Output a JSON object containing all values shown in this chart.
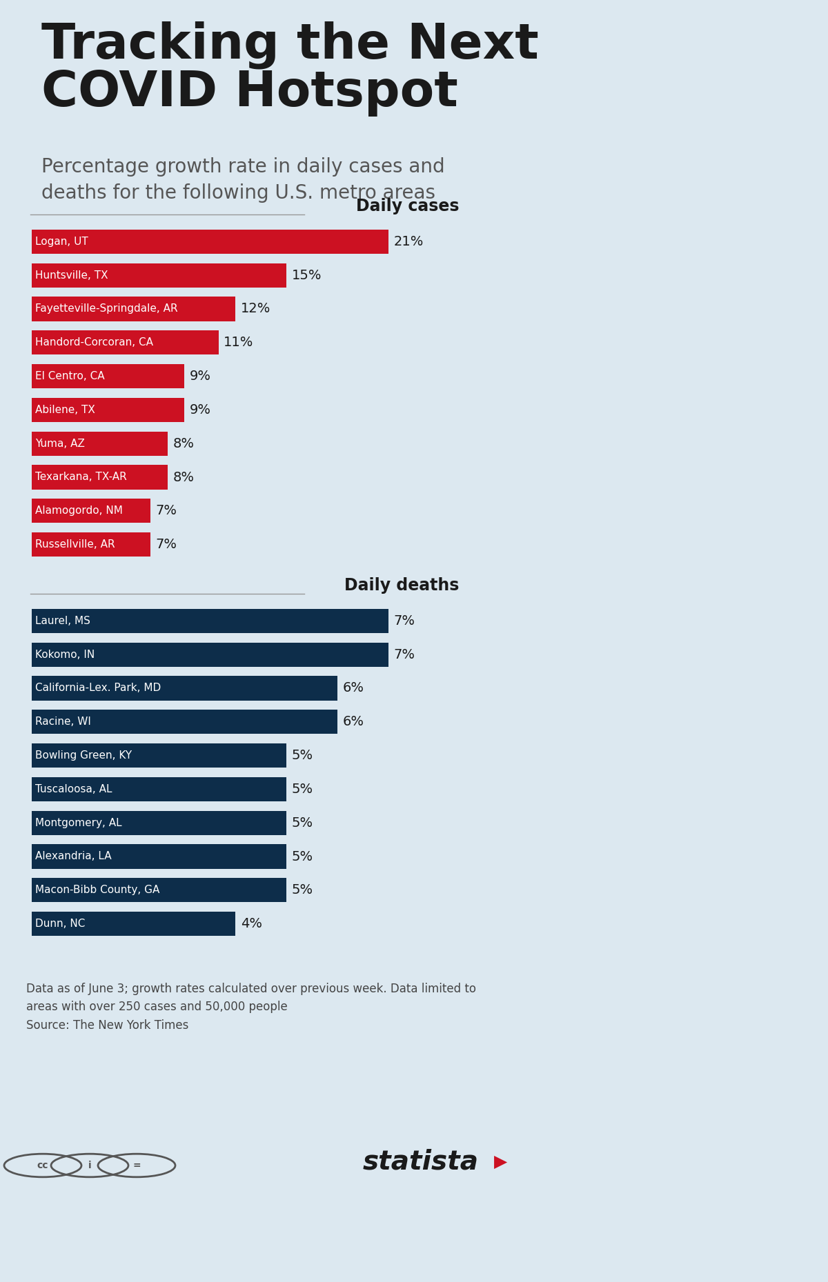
{
  "title_line1": "Tracking the Next",
  "title_line2": "COVID Hotspot",
  "subtitle": "Percentage growth rate in daily cases and\ndeaths for the following U.S. metro areas",
  "background_color": "#dce8f0",
  "daily_cases_title": "Daily cases",
  "daily_deaths_title": "Daily deaths",
  "cases_categories": [
    "Logan, UT",
    "Huntsville, TX",
    "Fayetteville-Springdale, AR",
    "Handord-Corcoran, CA",
    "El Centro, CA",
    "Abilene, TX",
    "Yuma, AZ",
    "Texarkana, TX-AR",
    "Alamogordo, NM",
    "Russellville, AR"
  ],
  "cases_values": [
    21,
    15,
    12,
    11,
    9,
    9,
    8,
    8,
    7,
    7
  ],
  "cases_bar_color": "#cc1122",
  "cases_max": 21,
  "deaths_categories": [
    "Laurel, MS",
    "Kokomo, IN",
    "California-Lex. Park, MD",
    "Racine, WI",
    "Bowling Green, KY",
    "Tuscaloosa, AL",
    "Montgomery, AL",
    "Alexandria, LA",
    "Macon-Bibb County, GA",
    "Dunn, NC"
  ],
  "deaths_values": [
    7,
    7,
    6,
    6,
    5,
    5,
    5,
    5,
    5,
    4
  ],
  "deaths_bar_color": "#0d2d4a",
  "deaths_max": 7,
  "bar_text_color": "#ffffff",
  "value_text_color": "#1a1a1a",
  "footnote_line1": "Data as of June 3; growth rates calculated over previous week. Data limited to",
  "footnote_line2": "areas with over 250 cases and 50,000 people",
  "footnote_line3": "Source: The New York Times",
  "panel_bg": "#ffffff",
  "panel_border": "#bbbbbb",
  "title_bar_color": "#cc1122",
  "title_color": "#1a1a1a",
  "subtitle_color": "#555555",
  "section_title_line_color": "#999999",
  "statista_color": "#1a1a1a"
}
